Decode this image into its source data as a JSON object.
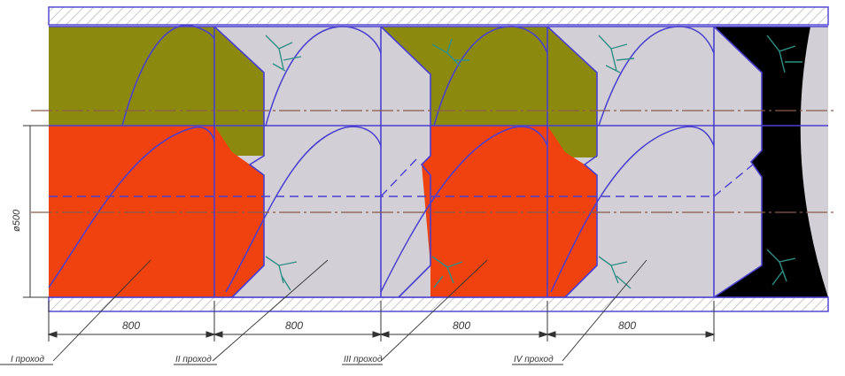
{
  "diameter_label": "ø500",
  "dimensions": [
    "800",
    "800",
    "800",
    "800"
  ],
  "pass_labels": [
    "I проход",
    "II проход",
    "III проход",
    "IV проход"
  ],
  "colors": {
    "olive": "#8b8a0f",
    "red": "#f0420f",
    "grey": "#d2cfd6",
    "black": "#000000",
    "outline": "#4a3fd0",
    "centerline": "#8a5a4a",
    "crack": "#2f8f86",
    "text": "#333333"
  }
}
